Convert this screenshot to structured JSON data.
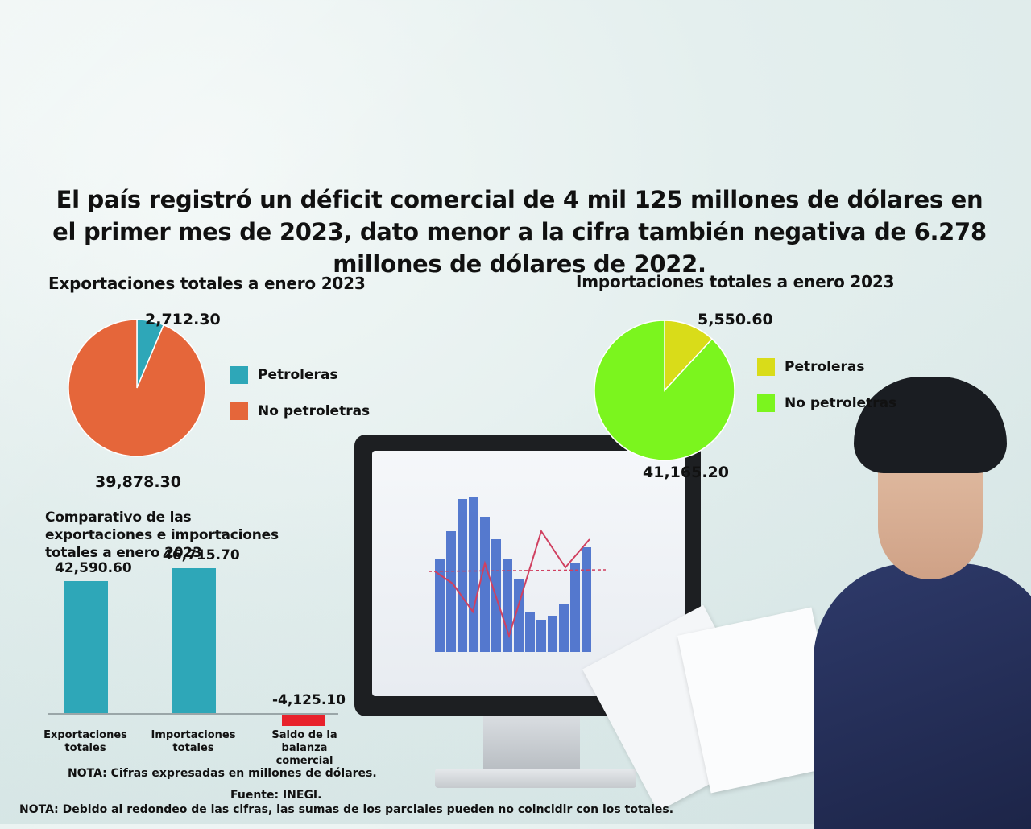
{
  "headline": "El país registró un déficit comercial de 4 mil 125 millones de dólares en el primer mes de 2023, dato menor a la cifra también negativa de 6.278 millones de dólares de 2022.",
  "colors": {
    "exp_petroleras": "#2ea7b8",
    "exp_no_petroleras": "#e5663a",
    "imp_petroleras": "#d9dc19",
    "imp_no_petroleras": "#7bf51e",
    "bar": "#2ea7b8",
    "bar_negative": "#e8212b"
  },
  "chart_data": [
    {
      "type": "pie",
      "title": "Exportaciones totales a enero 2023",
      "slices": [
        {
          "label": "Petroleras",
          "value": 2712.3,
          "value_label": "2,712.30"
        },
        {
          "label": "No petroletras",
          "value": 39878.3,
          "value_label": "39,878.30"
        }
      ],
      "legend": "right"
    },
    {
      "type": "pie",
      "title": "Importaciones totales a enero 2023",
      "slices": [
        {
          "label": "Petroleras",
          "value": 5550.6,
          "value_label": "5,550.60"
        },
        {
          "label": "No petroletras",
          "value": 41165.2,
          "value_label": "41,165.20"
        }
      ],
      "legend": "right"
    },
    {
      "type": "bar",
      "title": "Comparativo de las exportaciones e importaciones totales a enero 2023",
      "categories": [
        "Exportaciones totales",
        "Importaciones totales",
        "Saldo de la balanza comercial"
      ],
      "values": [
        42590.6,
        46715.7,
        -4125.1
      ],
      "value_labels": [
        "42,590.60",
        "46,715.70",
        "-4,125.10"
      ]
    }
  ],
  "notes": {
    "units": "NOTA: Cifras expresadas en millones de dólares.",
    "source": "Fuente: INEGI.",
    "rounding": "NOTA: Debido al redondeo de las cifras, las sumas de los parciales pueden no coincidir con los totales."
  }
}
